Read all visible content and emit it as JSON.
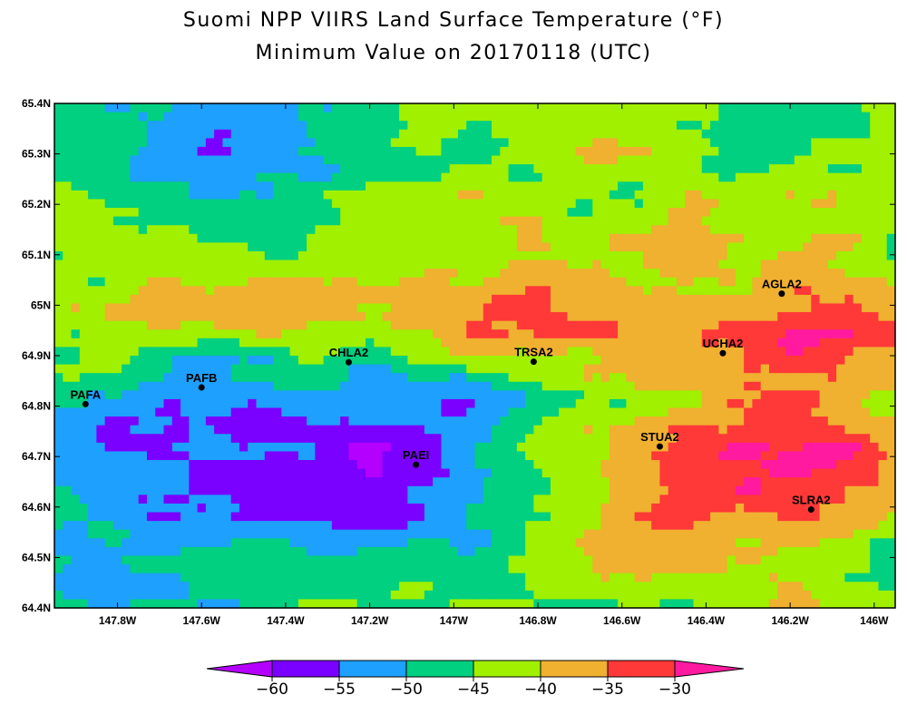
{
  "title": {
    "line1": "Suomi NPP VIIRS Land Surface Temperature (°F)",
    "line2": "Minimum Value on 20170118 (UTC)"
  },
  "map": {
    "lon_range": [
      -147.95,
      -145.95
    ],
    "lat_range": [
      64.4,
      65.4
    ],
    "lat_ticks": [
      {
        "value": 65.4,
        "label": "65.4N"
      },
      {
        "value": 65.3,
        "label": "65.3N"
      },
      {
        "value": 65.2,
        "label": "65.2N"
      },
      {
        "value": 65.1,
        "label": "65.1N"
      },
      {
        "value": 65.0,
        "label": "65N"
      },
      {
        "value": 64.9,
        "label": "64.9N"
      },
      {
        "value": 64.8,
        "label": "64.8N"
      },
      {
        "value": 64.7,
        "label": "64.7N"
      },
      {
        "value": 64.6,
        "label": "64.6N"
      },
      {
        "value": 64.5,
        "label": "64.5N"
      },
      {
        "value": 64.4,
        "label": "64.4N"
      }
    ],
    "lon_ticks": [
      {
        "value": -147.8,
        "label": "147.8W"
      },
      {
        "value": -147.6,
        "label": "147.6W"
      },
      {
        "value": -147.4,
        "label": "147.4W"
      },
      {
        "value": -147.2,
        "label": "147.2W"
      },
      {
        "value": -147.0,
        "label": "147W"
      },
      {
        "value": -146.8,
        "label": "146.8W"
      },
      {
        "value": -146.6,
        "label": "146.6W"
      },
      {
        "value": -146.4,
        "label": "146.4W"
      },
      {
        "value": -146.2,
        "label": "146.2W"
      },
      {
        "value": -146.0,
        "label": "146W"
      }
    ],
    "stations": [
      {
        "name": "PAFA",
        "lon": -147.876,
        "lat": 64.804
      },
      {
        "name": "PAFB",
        "lon": -147.6,
        "lat": 64.837
      },
      {
        "name": "CHLA2",
        "lon": -147.25,
        "lat": 64.887
      },
      {
        "name": "PAEI",
        "lon": -147.09,
        "lat": 64.684
      },
      {
        "name": "TRSA2",
        "lon": -146.81,
        "lat": 64.888
      },
      {
        "name": "UCHA2",
        "lon": -146.36,
        "lat": 64.905
      },
      {
        "name": "AGLA2",
        "lon": -146.22,
        "lat": 65.023
      },
      {
        "name": "STUA2",
        "lon": -146.51,
        "lat": 64.72
      },
      {
        "name": "SLRA2",
        "lon": -146.15,
        "lat": 64.595
      }
    ]
  },
  "colorbar": {
    "bins": [
      {
        "color": "#b400ff"
      },
      {
        "color": "#7a00ff"
      },
      {
        "color": "#1ea0ff"
      },
      {
        "color": "#00d080"
      },
      {
        "color": "#a0f000"
      },
      {
        "color": "#f0b030"
      },
      {
        "color": "#ff3838"
      },
      {
        "color": "#ff1aa0"
      }
    ],
    "labels": [
      "-60",
      "-55",
      "-50",
      "-45",
      "-40",
      "-35",
      "-30"
    ]
  }
}
